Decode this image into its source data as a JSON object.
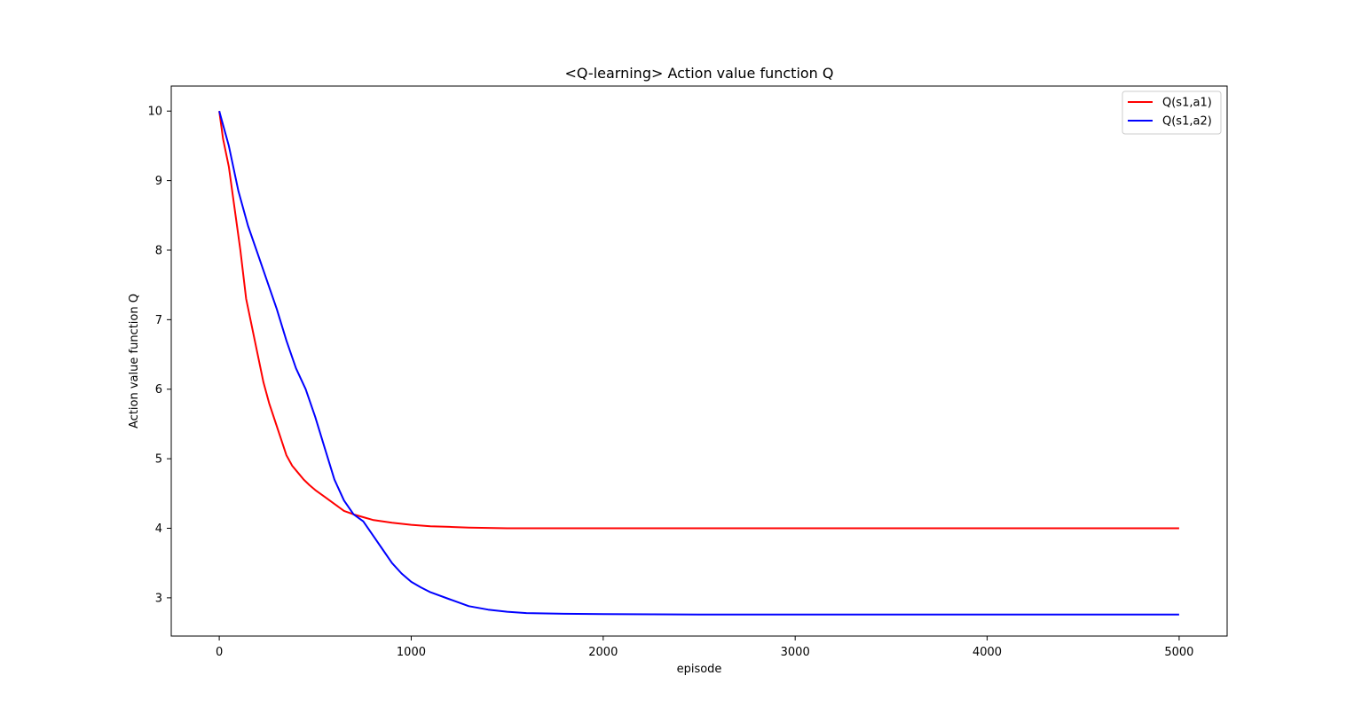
{
  "chart_data": {
    "type": "line",
    "title": "<Q-learning> Action value function Q",
    "xlabel": "episode",
    "ylabel": "Action value function Q",
    "xlim": [
      -250,
      5250
    ],
    "ylim": [
      2.45,
      10.36
    ],
    "xticks": [
      0,
      1000,
      2000,
      3000,
      4000,
      5000
    ],
    "yticks": [
      3,
      4,
      5,
      6,
      7,
      8,
      9,
      10
    ],
    "grid": false,
    "legend_position": "top-right",
    "series": [
      {
        "name": "Q(s1,a1)",
        "color": "#ff0000",
        "x": [
          0,
          20,
          50,
          80,
          110,
          140,
          170,
          200,
          230,
          260,
          290,
          320,
          350,
          380,
          410,
          440,
          470,
          500,
          550,
          600,
          650,
          700,
          750,
          800,
          900,
          1000,
          1100,
          1200,
          1300,
          1400,
          1500,
          1700,
          2000,
          2500,
          3000,
          3500,
          4000,
          4500,
          5000
        ],
        "y": [
          10.0,
          9.6,
          9.2,
          8.6,
          8.0,
          7.3,
          6.9,
          6.5,
          6.1,
          5.8,
          5.55,
          5.3,
          5.05,
          4.9,
          4.8,
          4.7,
          4.62,
          4.55,
          4.45,
          4.35,
          4.25,
          4.2,
          4.16,
          4.12,
          4.08,
          4.05,
          4.03,
          4.02,
          4.01,
          4.005,
          4.0,
          4.0,
          4.0,
          4.0,
          4.0,
          4.0,
          4.0,
          4.0,
          4.0
        ]
      },
      {
        "name": "Q(s1,a2)",
        "color": "#0000ff",
        "x": [
          0,
          50,
          100,
          150,
          200,
          250,
          300,
          350,
          400,
          450,
          500,
          550,
          600,
          650,
          700,
          750,
          800,
          850,
          900,
          950,
          1000,
          1050,
          1100,
          1200,
          1300,
          1400,
          1500,
          1600,
          1800,
          2000,
          2500,
          3000,
          3500,
          4000,
          4500,
          5000
        ],
        "y": [
          10.0,
          9.5,
          8.85,
          8.35,
          7.95,
          7.55,
          7.15,
          6.7,
          6.3,
          6.0,
          5.6,
          5.15,
          4.7,
          4.4,
          4.2,
          4.1,
          3.9,
          3.7,
          3.5,
          3.35,
          3.23,
          3.15,
          3.08,
          2.98,
          2.88,
          2.83,
          2.8,
          2.78,
          2.77,
          2.765,
          2.76,
          2.76,
          2.76,
          2.76,
          2.76,
          2.76
        ]
      }
    ]
  }
}
